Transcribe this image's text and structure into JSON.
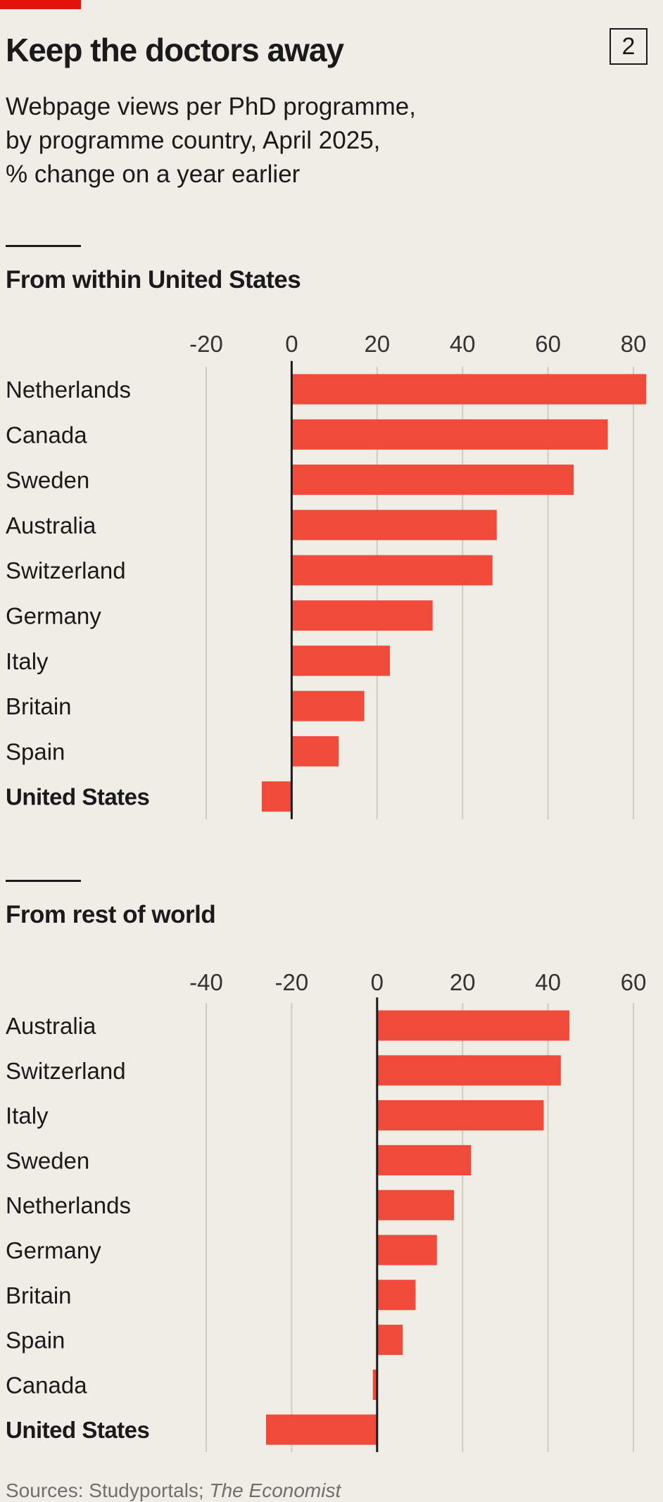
{
  "header": {
    "title": "Keep the doctors away",
    "chart_number": "2",
    "subtitle_lines": [
      "Webpage views per PhD programme,",
      "by programme country, April 2025,",
      "% change on a year earlier"
    ]
  },
  "colors": {
    "bar": "#f04a3a",
    "accent": "#e3120b",
    "gridline": "#cfccc3",
    "axis": "#1a1a1a",
    "background": "#efede6"
  },
  "chart_data": [
    {
      "type": "bar",
      "orientation": "horizontal",
      "title": "From within United States",
      "categories": [
        "Netherlands",
        "Canada",
        "Sweden",
        "Australia",
        "Switzerland",
        "Germany",
        "Italy",
        "Britain",
        "Spain",
        "United States"
      ],
      "values": [
        83,
        74,
        66,
        48,
        47,
        33,
        23,
        17,
        11,
        -7
      ],
      "highlight": "United States",
      "xlim": [
        -20,
        80
      ],
      "xticks": [
        -20,
        0,
        20,
        40,
        60,
        80
      ],
      "grid": true
    },
    {
      "type": "bar",
      "orientation": "horizontal",
      "title": "From rest of world",
      "categories": [
        "Australia",
        "Switzerland",
        "Italy",
        "Sweden",
        "Netherlands",
        "Germany",
        "Britain",
        "Spain",
        "Canada",
        "United States"
      ],
      "values": [
        45,
        43,
        39,
        22,
        18,
        14,
        9,
        6,
        -1,
        -26
      ],
      "highlight": "United States",
      "xlim": [
        -40,
        60
      ],
      "xticks": [
        -40,
        -20,
        0,
        20,
        40,
        60
      ],
      "grid": true
    }
  ],
  "footer": {
    "source_prefix": "Sources: Studyportals; ",
    "source_publication": "The Economist"
  }
}
